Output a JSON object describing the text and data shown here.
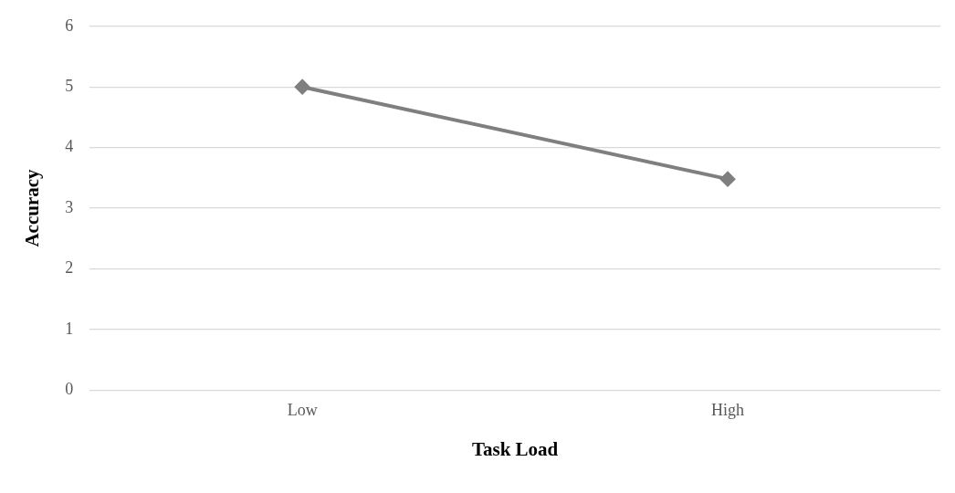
{
  "chart_data": {
    "type": "line",
    "xlabel": "Task Load",
    "ylabel": "Accuracy",
    "categories": [
      "Low",
      "High"
    ],
    "series": [
      {
        "color": "#7f7f7f",
        "values": [
          5,
          3.48
        ]
      }
    ],
    "ylim": [
      0,
      6
    ],
    "yticks": [
      0,
      1,
      2,
      3,
      4,
      5,
      6
    ],
    "grid": "y",
    "legend": false,
    "marker": "diamond",
    "line_style": "solid"
  }
}
